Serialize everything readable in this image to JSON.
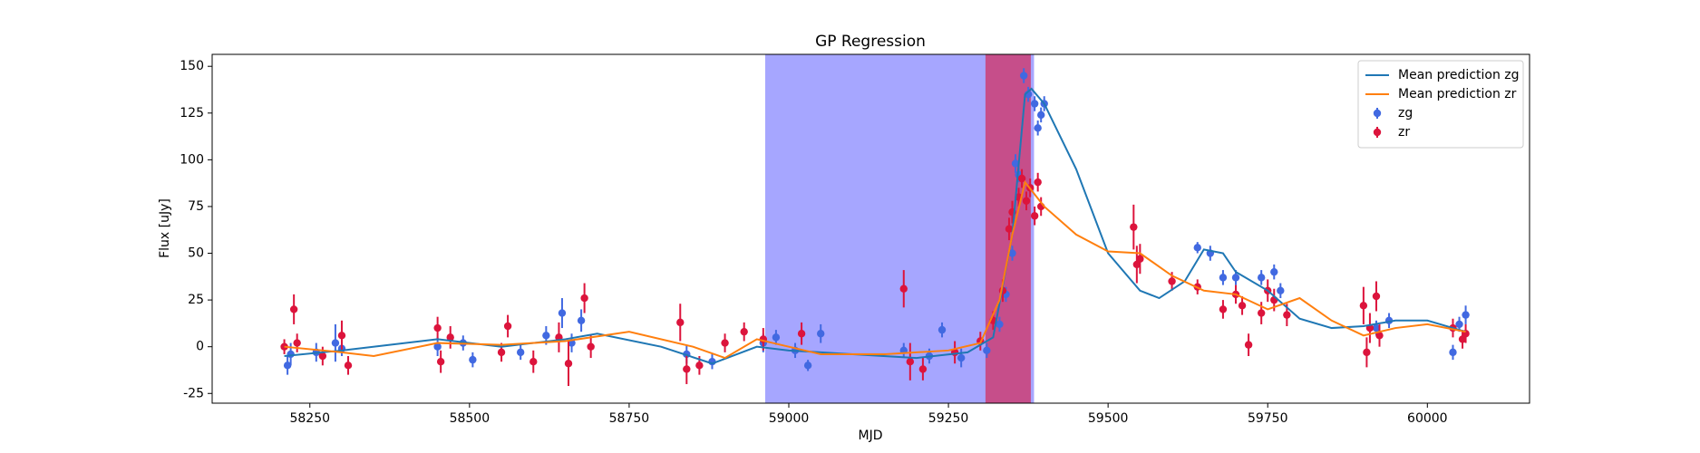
{
  "chart_data": {
    "type": "line",
    "title": "GP Regression",
    "x_label": "MJD",
    "y_label": "Flux [uJy]",
    "xlim": [
      58097,
      60160
    ],
    "ylim": [
      -30.2,
      156.4
    ],
    "xticks": [
      58250,
      58500,
      58750,
      59000,
      59250,
      59500,
      59750,
      60000
    ],
    "yticks": [
      -25,
      0,
      25,
      50,
      75,
      100,
      125,
      150
    ],
    "legend": "upper right",
    "spans": [
      {
        "xlim": [
          58963,
          59384
        ],
        "color": "#0000ff",
        "alpha": 0.35
      },
      {
        "xlim": [
          59308,
          59379
        ],
        "color": "#dc143c",
        "alpha": 0.6
      }
    ],
    "series": [
      {
        "name": "Mean prediction zg",
        "type": "line",
        "color": "#1f77b4",
        "x": [
          58210,
          58300,
          58450,
          58550,
          58650,
          58700,
          58800,
          58880,
          58950,
          59000,
          59100,
          59200,
          59280,
          59320,
          59350,
          59370,
          59380,
          59400,
          59450,
          59500,
          59550,
          59580,
          59620,
          59650,
          59680,
          59700,
          59750,
          59800,
          59850,
          59900,
          59950,
          60000,
          60040,
          60060
        ],
        "values": [
          -5,
          -2,
          4,
          0,
          4,
          7,
          0,
          -9,
          0,
          -2,
          -4,
          -6,
          -3,
          5,
          60,
          135,
          138,
          130,
          95,
          50,
          30,
          26,
          35,
          52,
          50,
          40,
          30,
          15,
          10,
          11,
          14,
          14,
          10,
          8
        ]
      },
      {
        "name": "Mean prediction zr",
        "type": "line",
        "color": "#ff7f0e",
        "x": [
          58210,
          58300,
          58350,
          58450,
          58550,
          58650,
          58750,
          58850,
          58900,
          58950,
          59000,
          59050,
          59150,
          59250,
          59300,
          59330,
          59350,
          59370,
          59400,
          59450,
          59500,
          59550,
          59600,
          59650,
          59700,
          59750,
          59800,
          59850,
          59900,
          59950,
          60000,
          60060
        ],
        "values": [
          0,
          -3,
          -5,
          2,
          1,
          3,
          8,
          0,
          -6,
          4,
          0,
          -4,
          -4,
          -2,
          2,
          25,
          60,
          88,
          75,
          60,
          51,
          50,
          38,
          30,
          28,
          20,
          26,
          14,
          6,
          10,
          12,
          8
        ]
      },
      {
        "name": "zg",
        "type": "errorbar",
        "color": "#4169e1",
        "x": [
          58215,
          58220,
          58260,
          58290,
          58300,
          58450,
          58490,
          58505,
          58580,
          58620,
          58645,
          58660,
          58675,
          58840,
          58880,
          58960,
          58980,
          59010,
          59030,
          59050,
          59180,
          59220,
          59240,
          59270,
          59310,
          59330,
          59340,
          59350,
          59355,
          59360,
          59368,
          59375,
          59385,
          59390,
          59395,
          59400,
          59640,
          59660,
          59680,
          59700,
          59740,
          59760,
          59770,
          59920,
          59940,
          60040,
          60050,
          60060
        ],
        "values": [
          -10,
          -4,
          -3,
          2,
          -1,
          0,
          2,
          -7,
          -3,
          6,
          18,
          2,
          14,
          -4,
          -8,
          2,
          5,
          -2,
          -10,
          7,
          -2,
          -5,
          9,
          -6,
          -2,
          12,
          28,
          50,
          98,
          92,
          145,
          135,
          130,
          117,
          124,
          130,
          53,
          50,
          37,
          37,
          37,
          40,
          30,
          10,
          14,
          -3,
          12,
          17
        ],
        "errors": [
          5,
          6,
          5,
          10,
          4,
          5,
          4,
          4,
          4,
          5,
          8,
          5,
          6,
          5,
          4,
          5,
          4,
          4,
          3,
          5,
          4,
          4,
          4,
          5,
          4,
          4,
          4,
          4,
          5,
          4,
          4,
          4,
          4,
          4,
          4,
          4,
          3,
          4,
          4,
          4,
          4,
          4,
          4,
          4,
          4,
          4,
          4,
          5
        ]
      },
      {
        "name": "zr",
        "type": "errorbar",
        "color": "#dc143c",
        "x": [
          58210,
          58225,
          58230,
          58270,
          58300,
          58310,
          58450,
          58455,
          58470,
          58550,
          58560,
          58600,
          58640,
          58655,
          58680,
          58690,
          58830,
          58840,
          58860,
          58900,
          58930,
          58960,
          59020,
          59180,
          59190,
          59210,
          59260,
          59300,
          59320,
          59335,
          59345,
          59350,
          59360,
          59365,
          59372,
          59378,
          59385,
          59390,
          59395,
          59540,
          59545,
          59550,
          59600,
          59640,
          59680,
          59700,
          59710,
          59720,
          59740,
          59750,
          59760,
          59780,
          59900,
          59905,
          59910,
          59920,
          59925,
          60040,
          60055,
          60060
        ],
        "values": [
          0,
          20,
          2,
          -5,
          6,
          -10,
          10,
          -8,
          5,
          -3,
          11,
          -8,
          5,
          -9,
          26,
          0,
          13,
          -12,
          -10,
          2,
          8,
          4,
          7,
          31,
          -8,
          -12,
          -3,
          3,
          14,
          30,
          63,
          72,
          80,
          90,
          78,
          85,
          70,
          88,
          75,
          64,
          44,
          47,
          35,
          32,
          20,
          28,
          22,
          1,
          18,
          30,
          25,
          17,
          22,
          -3,
          10,
          27,
          6,
          10,
          4,
          7
        ],
        "errors": [
          4,
          8,
          5,
          5,
          8,
          5,
          6,
          6,
          6,
          5,
          6,
          6,
          8,
          12,
          8,
          6,
          10,
          8,
          5,
          5,
          5,
          6,
          6,
          10,
          10,
          6,
          6,
          5,
          5,
          6,
          6,
          6,
          5,
          5,
          5,
          5,
          5,
          5,
          5,
          12,
          10,
          8,
          5,
          4,
          5,
          5,
          5,
          6,
          6,
          6,
          6,
          6,
          10,
          8,
          8,
          8,
          6,
          5,
          5,
          5
        ]
      }
    ]
  }
}
